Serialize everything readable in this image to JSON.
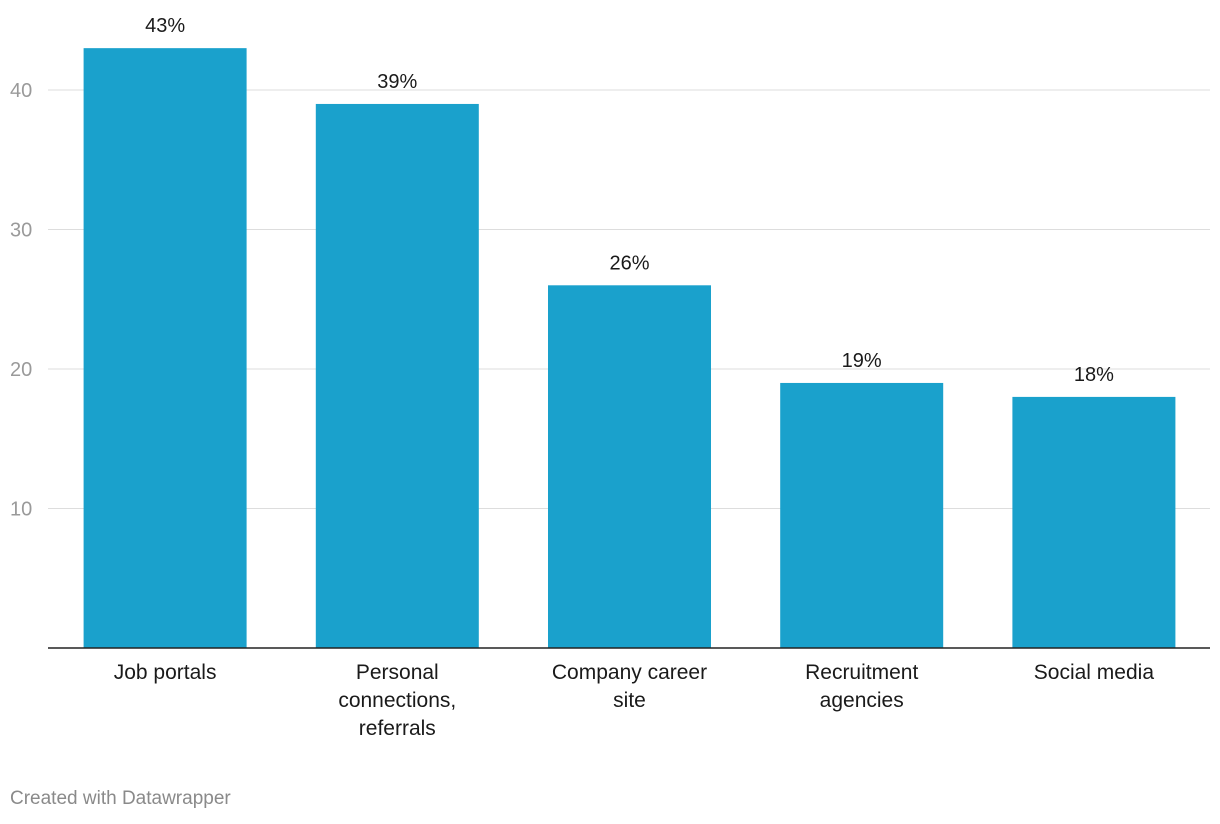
{
  "chart_data": {
    "type": "bar",
    "categories": [
      [
        "Job portals"
      ],
      [
        "Personal",
        "connections,",
        "referrals"
      ],
      [
        "Company career",
        "site"
      ],
      [
        "Recruitment",
        "agencies"
      ],
      [
        "Social media"
      ]
    ],
    "values": [
      43,
      39,
      26,
      19,
      18
    ],
    "value_labels": [
      "43%",
      "39%",
      "26%",
      "19%",
      "18%"
    ],
    "yticks": [
      10,
      20,
      30,
      40
    ],
    "ylim": [
      0,
      43
    ],
    "grid": true,
    "bar_color": "#1aa1cc",
    "title": "",
    "xlabel": "",
    "ylabel": ""
  },
  "credit": "Created with Datawrapper"
}
